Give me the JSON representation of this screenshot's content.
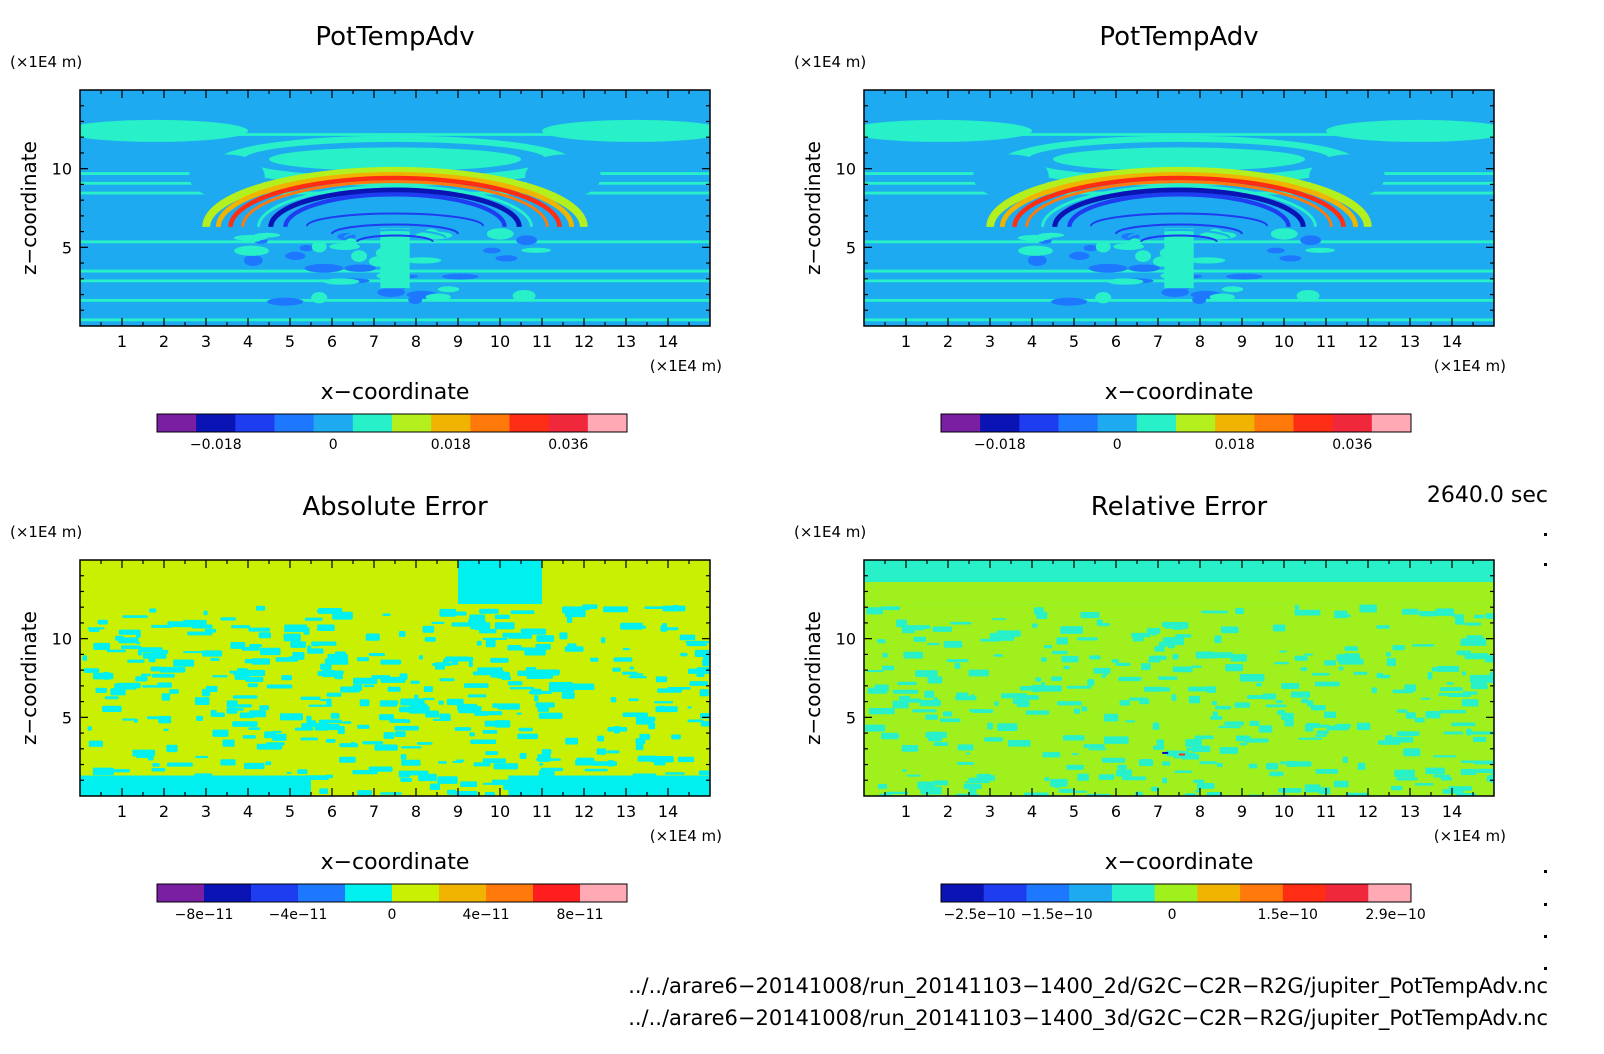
{
  "chart_data": [
    {
      "type": "heatmap",
      "title": "PotTempAdv",
      "xlabel": "x−coordinate",
      "ylabel": "z−coordinate",
      "x_unit": "(×1E4 m)",
      "y_unit": "(×1E4 m)",
      "xlim": [
        0,
        15
      ],
      "ylim": [
        0,
        15
      ],
      "x_ticks": [
        1,
        2,
        3,
        4,
        5,
        6,
        7,
        8,
        9,
        10,
        11,
        12,
        13,
        14
      ],
      "y_ticks": [
        5,
        10
      ],
      "colorbar": {
        "colors": [
          "#7a1fa2",
          "#0a14b4",
          "#1e3cf0",
          "#1e78ff",
          "#1eaaf0",
          "#28f0c8",
          "#b4f01e",
          "#f0b400",
          "#ff7a0a",
          "#ff2d14",
          "#f0283c",
          "#ffaab4"
        ],
        "tick_labels": [
          "−0.018",
          "0",
          "0.018",
          "0.036"
        ],
        "tick_values": [
          -0.018,
          0,
          0.018,
          0.036
        ],
        "range": [
          -0.027,
          0.045
        ]
      },
      "pattern": "field"
    },
    {
      "type": "heatmap",
      "title": "PotTempAdv",
      "xlabel": "x−coordinate",
      "ylabel": "z−coordinate",
      "x_unit": "(×1E4 m)",
      "y_unit": "(×1E4 m)",
      "xlim": [
        0,
        15
      ],
      "ylim": [
        0,
        15
      ],
      "x_ticks": [
        1,
        2,
        3,
        4,
        5,
        6,
        7,
        8,
        9,
        10,
        11,
        12,
        13,
        14
      ],
      "y_ticks": [
        5,
        10
      ],
      "colorbar": {
        "colors": [
          "#7a1fa2",
          "#0a14b4",
          "#1e3cf0",
          "#1e78ff",
          "#1eaaf0",
          "#28f0c8",
          "#b4f01e",
          "#f0b400",
          "#ff7a0a",
          "#ff2d14",
          "#f0283c",
          "#ffaab4"
        ],
        "tick_labels": [
          "−0.018",
          "0",
          "0.018",
          "0.036"
        ],
        "tick_values": [
          -0.018,
          0,
          0.018,
          0.036
        ],
        "range": [
          -0.027,
          0.045
        ]
      },
      "pattern": "field"
    },
    {
      "type": "heatmap",
      "title": "Absolute Error",
      "xlabel": "x−coordinate",
      "ylabel": "z−coordinate",
      "x_unit": "(×1E4 m)",
      "y_unit": "(×1E4 m)",
      "xlim": [
        0,
        15
      ],
      "ylim": [
        0,
        15
      ],
      "x_ticks": [
        1,
        2,
        3,
        4,
        5,
        6,
        7,
        8,
        9,
        10,
        11,
        12,
        13,
        14
      ],
      "y_ticks": [
        5,
        10
      ],
      "colorbar": {
        "colors": [
          "#7a1fa2",
          "#0a14b4",
          "#1e3cf0",
          "#1e78ff",
          "#00f0f0",
          "#c8f000",
          "#f0b400",
          "#ff7a0a",
          "#ff1e1e",
          "#ffaab4"
        ],
        "tick_labels": [
          "−8e−11",
          "−4e−11",
          "0",
          "4e−11",
          "8e−11"
        ],
        "tick_values": [
          -8e-11,
          -4e-11,
          0,
          4e-11,
          8e-11
        ],
        "range": [
          -1e-10,
          1e-10
        ]
      },
      "pattern": "abserr"
    },
    {
      "type": "heatmap",
      "title": "Relative Error",
      "xlabel": "x−coordinate",
      "ylabel": "z−coordinate",
      "x_unit": "(×1E4 m)",
      "y_unit": "(×1E4 m)",
      "xlim": [
        0,
        15
      ],
      "ylim": [
        0,
        15
      ],
      "x_ticks": [
        1,
        2,
        3,
        4,
        5,
        6,
        7,
        8,
        9,
        10,
        11,
        12,
        13,
        14
      ],
      "y_ticks": [
        5,
        10
      ],
      "colorbar": {
        "colors": [
          "#0a14b4",
          "#1e3cf0",
          "#1e78ff",
          "#1eaaf0",
          "#28f0c8",
          "#a0f01e",
          "#f0b400",
          "#ff7a0a",
          "#ff2d14",
          "#f0283c",
          "#ffaab4"
        ],
        "tick_labels": [
          "−2.5e−10",
          "−1.5e−10",
          "0",
          "1.5e−10",
          "2.9e−10"
        ],
        "tick_values": [
          -2.5e-10,
          -1.5e-10,
          0,
          1.5e-10,
          2.9e-10
        ],
        "range": [
          -3e-10,
          3.1e-10
        ]
      },
      "pattern": "relerr"
    }
  ],
  "time_label": "2640.0 sec",
  "files": [
    "../../arare6−20141008/run_20141103−1400_2d/G2C−C2R−R2G/jupiter_PotTempAdv.nc",
    "../../arare6−20141008/run_20141103−1400_3d/G2C−C2R−R2G/jupiter_PotTempAdv.nc"
  ]
}
